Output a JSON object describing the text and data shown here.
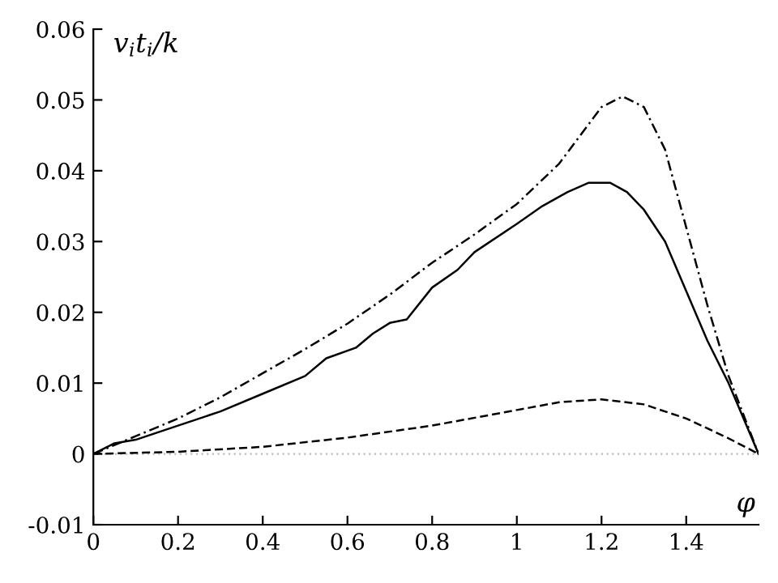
{
  "chart_data": {
    "type": "line",
    "xlabel": "φ",
    "ylabel": "v$_{i}$t$_{i}$/k",
    "xlim": [
      0,
      1.5708
    ],
    "xticks": [
      0,
      0.2,
      0.4,
      0.6,
      0.8,
      1,
      1.2,
      1.4
    ],
    "ylim": [
      -0.01,
      0.06
    ],
    "yticks": [
      -0.01,
      0,
      0.01,
      0.02,
      0.03,
      0.04,
      0.05,
      0.06
    ],
    "grid": false,
    "marker": "none",
    "ref_lines": [
      {
        "axis": "y",
        "value": 0,
        "color": "#bbbbbb",
        "line_style": "dotted"
      }
    ],
    "series": [
      {
        "color": "#000000",
        "line_style": "dashdot",
        "x": [
          0,
          0.1,
          0.2,
          0.3,
          0.4,
          0.5,
          0.6,
          0.7,
          0.8,
          0.9,
          1.0,
          1.1,
          1.15,
          1.2,
          1.25,
          1.3,
          1.35,
          1.4,
          1.45,
          1.5,
          1.5708
        ],
        "values": [
          0,
          0.0025,
          0.005,
          0.008,
          0.0114,
          0.0148,
          0.0184,
          0.0225,
          0.027,
          0.031,
          0.0353,
          0.041,
          0.045,
          0.049,
          0.0505,
          0.049,
          0.043,
          0.032,
          0.021,
          0.011,
          0
        ]
      },
      {
        "color": "#000000",
        "line_style": "solid",
        "x": [
          0,
          0.05,
          0.1,
          0.2,
          0.3,
          0.4,
          0.5,
          0.55,
          0.62,
          0.66,
          0.7,
          0.74,
          0.8,
          0.86,
          0.9,
          1.0,
          1.06,
          1.12,
          1.17,
          1.22,
          1.26,
          1.3,
          1.35,
          1.4,
          1.45,
          1.5,
          1.5708
        ],
        "values": [
          0,
          0.0015,
          0.002,
          0.004,
          0.006,
          0.0085,
          0.011,
          0.0135,
          0.015,
          0.017,
          0.0185,
          0.019,
          0.0235,
          0.026,
          0.0285,
          0.0325,
          0.035,
          0.037,
          0.0383,
          0.0383,
          0.037,
          0.0345,
          0.03,
          0.023,
          0.016,
          0.01,
          0
        ]
      },
      {
        "color": "#000000",
        "line_style": "dashed",
        "x": [
          0,
          0.2,
          0.4,
          0.6,
          0.8,
          1.0,
          1.1,
          1.2,
          1.3,
          1.4,
          1.5,
          1.5708
        ],
        "values": [
          0,
          0.0003,
          0.001,
          0.0023,
          0.004,
          0.0062,
          0.0073,
          0.0077,
          0.007,
          0.005,
          0.0022,
          0
        ]
      }
    ]
  }
}
